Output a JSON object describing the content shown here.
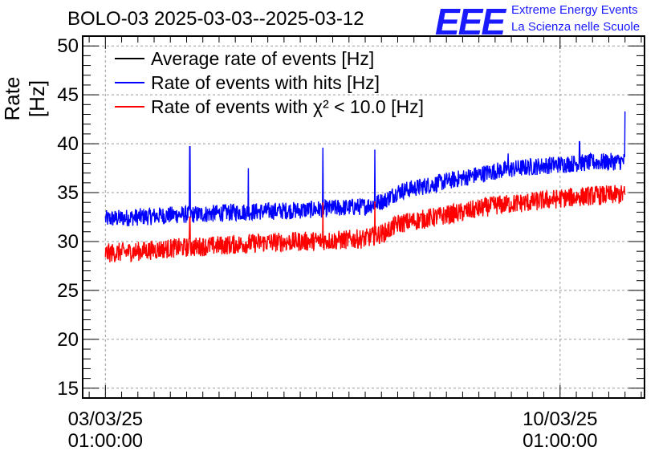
{
  "title": "BOLO-03 2025-03-03--2025-03-12",
  "logo": {
    "mark": "EEE",
    "line1": "Extreme Energy Events",
    "line2": "La Scienza nelle Scuole"
  },
  "colors": {
    "average": "#000000",
    "hits": "#0000ff",
    "chi2": "#ff0000",
    "logo": "#1a1aff"
  },
  "chart_data": {
    "type": "line",
    "title": "BOLO-03 2025-03-03--2025-03-12",
    "ylabel": "Rate [Hz]",
    "xlabel": "",
    "ylim": [
      14,
      51
    ],
    "yticks": [
      15,
      20,
      25,
      30,
      35,
      40,
      45,
      50
    ],
    "x_unit": "days since 03/03/25 01:00:00",
    "xlim": [
      -0.35,
      8.3
    ],
    "xticks": [
      {
        "x": 0,
        "line1": "03/03/25",
        "line2": "01:00:00"
      },
      {
        "x": 7,
        "line1": "10/03/25",
        "line2": "01:00:00"
      }
    ],
    "grid": true,
    "legend_position": "top-left",
    "series": [
      {
        "name": "Average rate of events [Hz]",
        "color": "#000000",
        "x": [],
        "y": []
      },
      {
        "name": "Rate of events with hits [Hz]",
        "color": "#0000ff",
        "x": [
          0,
          0.5,
          1,
          1.5,
          2,
          2.5,
          3,
          3.5,
          4,
          4.3,
          4.5,
          5,
          5.5,
          6,
          6.5,
          7,
          7.5,
          8
        ],
        "y": [
          32.3,
          32.5,
          32.7,
          32.8,
          33.0,
          33.1,
          33.2,
          33.4,
          33.6,
          34.2,
          35.1,
          35.8,
          36.5,
          37.2,
          37.6,
          37.9,
          38.1,
          38.2
        ],
        "noise": 0.9,
        "spikes": [
          {
            "x": 1.3,
            "y": 39.7
          },
          {
            "x": 2.2,
            "y": 37.5
          },
          {
            "x": 3.35,
            "y": 39.6
          },
          {
            "x": 4.15,
            "y": 39.4
          },
          {
            "x": 6.2,
            "y": 39.0
          },
          {
            "x": 7.3,
            "y": 40.2
          },
          {
            "x": 8.0,
            "y": 43.3
          }
        ]
      },
      {
        "name": "Rate of events with χ² < 10.0 [Hz]",
        "color": "#ff0000",
        "x": [
          0,
          0.5,
          1,
          1.5,
          2,
          2.5,
          3,
          3.5,
          4,
          4.3,
          4.5,
          5,
          5.5,
          6,
          6.5,
          7,
          7.5,
          8
        ],
        "y": [
          28.8,
          29.0,
          29.3,
          29.5,
          29.7,
          29.9,
          30.0,
          30.1,
          30.3,
          30.9,
          31.8,
          32.4,
          33.0,
          33.7,
          34.0,
          34.4,
          34.7,
          34.8
        ],
        "noise": 1.0,
        "spikes": [
          {
            "x": 3.35,
            "y": 34.0
          },
          {
            "x": 4.15,
            "y": 34.1
          },
          {
            "x": 1.3,
            "y": 32.5
          }
        ]
      }
    ]
  }
}
